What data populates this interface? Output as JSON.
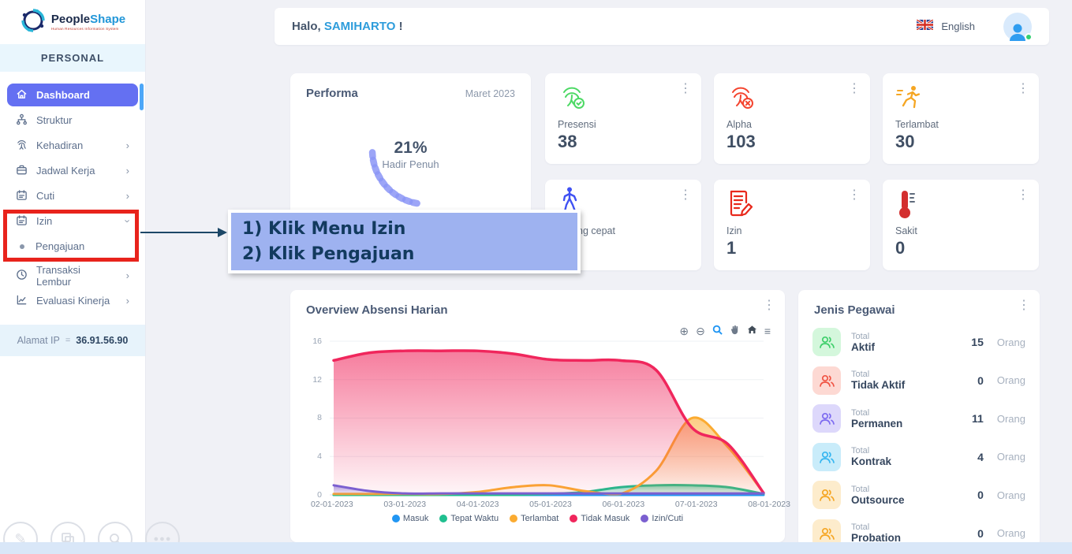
{
  "brand": {
    "name_primary": "People",
    "name_secondary": "Shape",
    "tagline": "Human Resources Information System"
  },
  "sidebar": {
    "section_label": "PERSONAL",
    "items": [
      {
        "label": "Dashboard",
        "icon": "home-icon",
        "active": true
      },
      {
        "label": "Struktur",
        "icon": "org-icon"
      },
      {
        "label": "Kehadiran",
        "icon": "fingerprint-icon",
        "chevron": "right"
      },
      {
        "label": "Jadwal Kerja",
        "icon": "briefcase-icon",
        "chevron": "right"
      },
      {
        "label": "Cuti",
        "icon": "calendar-icon",
        "chevron": "right"
      },
      {
        "label": "Izin",
        "icon": "calendar-icon",
        "chevron": "down",
        "expanded": true
      },
      {
        "label": "Pengajuan",
        "icon": "dot",
        "submenu": true
      },
      {
        "label": "Transaksi Lembur",
        "icon": "clock-icon",
        "chevron": "right"
      },
      {
        "label": "Evaluasi Kinerja",
        "icon": "chart-line-icon",
        "chevron": "right"
      }
    ],
    "ip_label": "Alamat IP",
    "ip_separator": "=",
    "ip_value": "36.91.56.90"
  },
  "topbar": {
    "greeting_prefix": "Halo, ",
    "username": "SAMIHARTO",
    "greeting_suffix": " !",
    "language": "English"
  },
  "performa": {
    "title": "Performa",
    "period": "Maret 2023",
    "value": "21%",
    "label": "Hadir Penuh"
  },
  "stat_cards": [
    {
      "label": "Presensi",
      "value": "38",
      "icon": "fingerprint-check-icon",
      "icon_color": "#4cd964"
    },
    {
      "label": "Alpha",
      "value": "103",
      "icon": "fingerprint-x-icon",
      "icon_color": "#f4442e"
    },
    {
      "label": "Terlambat",
      "value": "30",
      "icon": "runner-icon",
      "icon_color": "#f5a623"
    },
    {
      "label": "Pulang cepat",
      "value": "",
      "icon": "walker-icon",
      "icon_color": "#3f51f3"
    },
    {
      "label": "Izin",
      "value": "1",
      "icon": "document-edit-icon",
      "icon_color": "#e8291c"
    },
    {
      "label": "Sakit",
      "value": "0",
      "icon": "thermometer-icon",
      "icon_color": "#d32f2f"
    }
  ],
  "annotation": {
    "line1": "1) Klik Menu Izin",
    "line2": "2) Klik Pengajuan"
  },
  "chart_card": {
    "title": "Overview Absensi Harian"
  },
  "chart_data": {
    "type": "area",
    "title": "Overview Absensi Harian",
    "x_tick_labels": [
      "02-01-2023",
      "03-01-2023",
      "04-01-2023",
      "05-01-2023",
      "06-01-2023",
      "07-01-2023",
      "08-01-2023"
    ],
    "x_step_days": 0.5,
    "ylim": [
      0,
      16
    ],
    "y_tick_labels": [
      "16",
      "12",
      "8",
      "4",
      "0"
    ],
    "grid": "horizontal",
    "legend_position": "bottom",
    "series": [
      {
        "name": "Masuk",
        "color": "#2196f3",
        "values": [
          0,
          0,
          0,
          0,
          0,
          0,
          0,
          0,
          0,
          0,
          0,
          0,
          0
        ]
      },
      {
        "name": "Tepat Waktu",
        "color": "#1fbf8f",
        "values": [
          0,
          0,
          0,
          0,
          0,
          0,
          0.1,
          0.3,
          0.8,
          1,
          1,
          0.8,
          0.1
        ]
      },
      {
        "name": "Terlambat",
        "color": "#fbab31",
        "values": [
          0.1,
          0.1,
          0.1,
          0.1,
          0.3,
          0.8,
          1,
          0.4,
          0.1,
          2.5,
          8,
          5,
          0.2
        ]
      },
      {
        "name": "Tidak Masuk",
        "color": "#f0265c",
        "values": [
          14,
          14.8,
          15,
          15,
          15,
          14.7,
          14.1,
          14,
          14,
          13,
          7,
          5.3,
          0.2
        ]
      },
      {
        "name": "Izin/Cuti",
        "color": "#7b5fd0",
        "values": [
          1,
          0.4,
          0.15,
          0.15,
          0.15,
          0.15,
          0.15,
          0.15,
          0.15,
          0.15,
          0.15,
          0.15,
          0.15
        ]
      }
    ]
  },
  "jenis_pegawai": {
    "title": "Jenis Pegawai",
    "rows": [
      {
        "prefix": "Total",
        "label": "Aktif",
        "value": "15",
        "unit": "Orang",
        "color": "green"
      },
      {
        "prefix": "Total",
        "label": "Tidak Aktif",
        "value": "0",
        "unit": "Orang",
        "color": "red"
      },
      {
        "prefix": "Total",
        "label": "Permanen",
        "value": "11",
        "unit": "Orang",
        "color": "purple"
      },
      {
        "prefix": "Total",
        "label": "Kontrak",
        "value": "4",
        "unit": "Orang",
        "color": "cyan"
      },
      {
        "prefix": "Total",
        "label": "Outsource",
        "value": "0",
        "unit": "Orang",
        "color": "orange"
      },
      {
        "prefix": "Total",
        "label": "Probation",
        "value": "0",
        "unit": "Orang",
        "color": "orange"
      }
    ]
  },
  "colors": {
    "sidebar_active": "#6470f2",
    "highlight_box": "#e8231c",
    "callout_bg": "#9eb2f0",
    "callout_text": "#123a5e",
    "username_accent": "#2d9cdb",
    "gauge": "#8b96f6",
    "page_bg": "#f0f1f6",
    "bottom_strip": "#d9e7f8"
  }
}
